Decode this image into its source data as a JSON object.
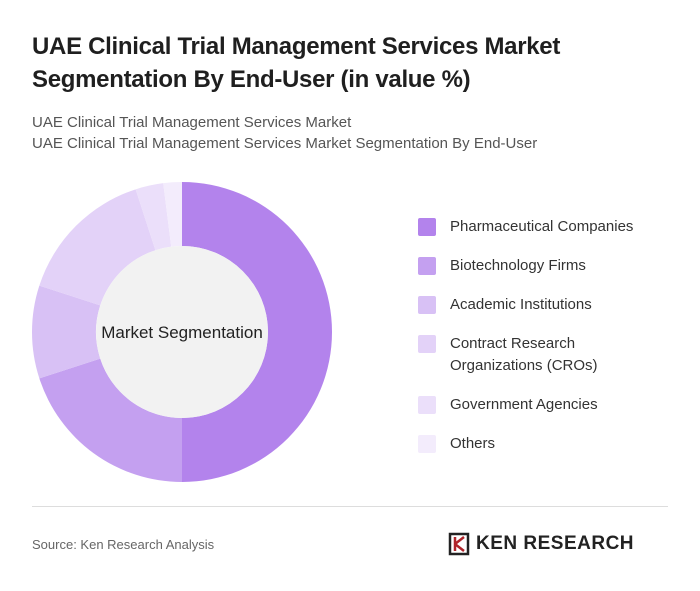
{
  "header": {
    "title": "UAE Clinical Trial Management Services Market Segmentation By End-User (in value %)",
    "subtitle_lines": [
      "UAE Clinical Trial Management Services Market",
      "UAE Clinical Trial Management Services Market Segmentation By End-User"
    ]
  },
  "chart_data": {
    "type": "donut",
    "center_label": "Market Segmentation",
    "categories": [
      "Pharmaceutical Companies",
      "Biotechnology Firms",
      "Academic Institutions",
      "Contract Research Organizations (CROs)",
      "Government Agencies",
      "Others"
    ],
    "values": [
      50,
      20,
      10,
      15,
      3,
      2
    ],
    "colors": [
      "#b383ec",
      "#c4a0f0",
      "#d8c1f5",
      "#e3d2f8",
      "#ebdffa",
      "#f3ecfc"
    ]
  },
  "footer": {
    "source": "Source: Ken Research Analysis",
    "logo": "KEN RESEARCH"
  }
}
